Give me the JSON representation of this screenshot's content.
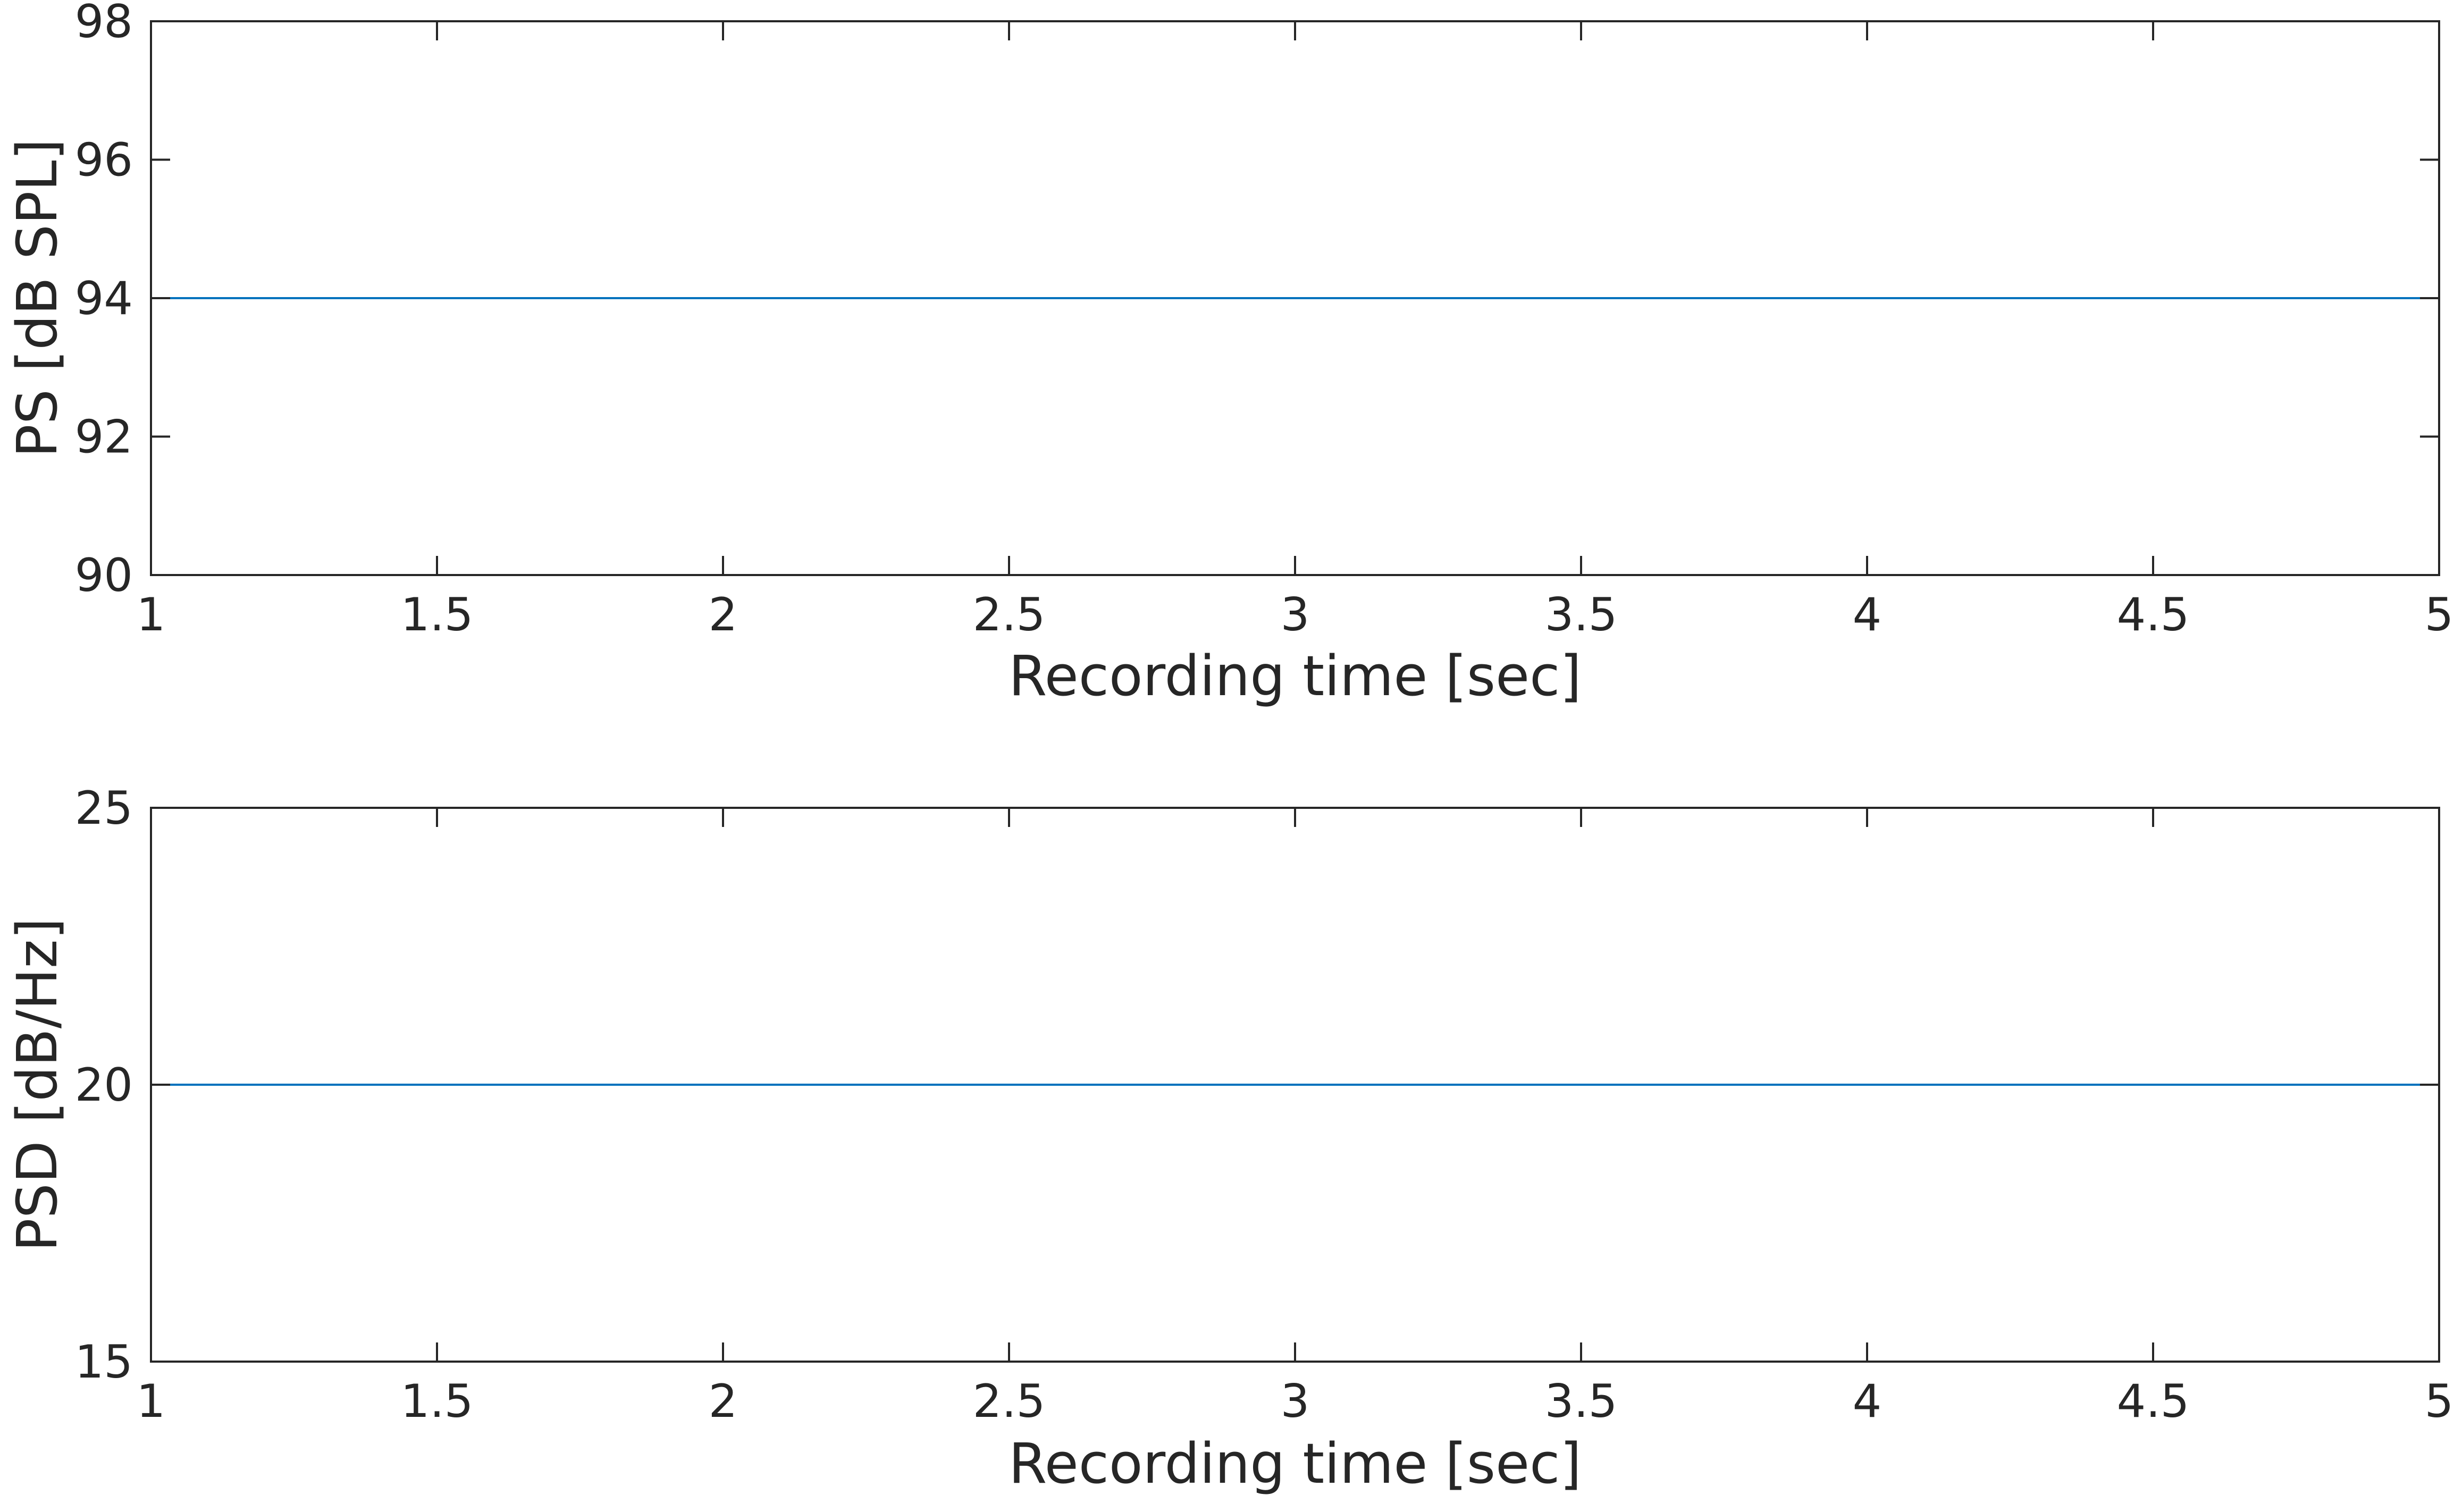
{
  "chart_data": [
    {
      "type": "line",
      "xlabel": "Recording time [sec]",
      "ylabel": "PS [dB SPL]",
      "xlim": [
        1,
        5
      ],
      "ylim": [
        90,
        98
      ],
      "xticks": [
        1,
        1.5,
        2,
        2.5,
        3,
        3.5,
        4,
        4.5,
        5
      ],
      "xtick_labels": [
        "1",
        "1.5",
        "2",
        "2.5",
        "3",
        "3.5",
        "4",
        "4.5",
        "5"
      ],
      "yticks": [
        90,
        92,
        94,
        96,
        98
      ],
      "ytick_labels": [
        "90",
        "92",
        "94",
        "96",
        "98"
      ],
      "grid": false,
      "series": [
        {
          "color": "#0072BD",
          "x": [
            1,
            5
          ],
          "y": [
            94,
            94
          ]
        }
      ]
    },
    {
      "type": "line",
      "xlabel": "Recording time [sec]",
      "ylabel": "PSD [dB/Hz]",
      "xlim": [
        1,
        5
      ],
      "ylim": [
        15,
        25
      ],
      "xticks": [
        1,
        1.5,
        2,
        2.5,
        3,
        3.5,
        4,
        4.5,
        5
      ],
      "xtick_labels": [
        "1",
        "1.5",
        "2",
        "2.5",
        "3",
        "3.5",
        "4",
        "4.5",
        "5"
      ],
      "yticks": [
        15,
        20,
        25
      ],
      "ytick_labels": [
        "15",
        "20",
        "25"
      ],
      "grid": false,
      "series": [
        {
          "color": "#0072BD",
          "x": [
            1,
            5
          ],
          "y": [
            20,
            20
          ]
        }
      ]
    }
  ]
}
